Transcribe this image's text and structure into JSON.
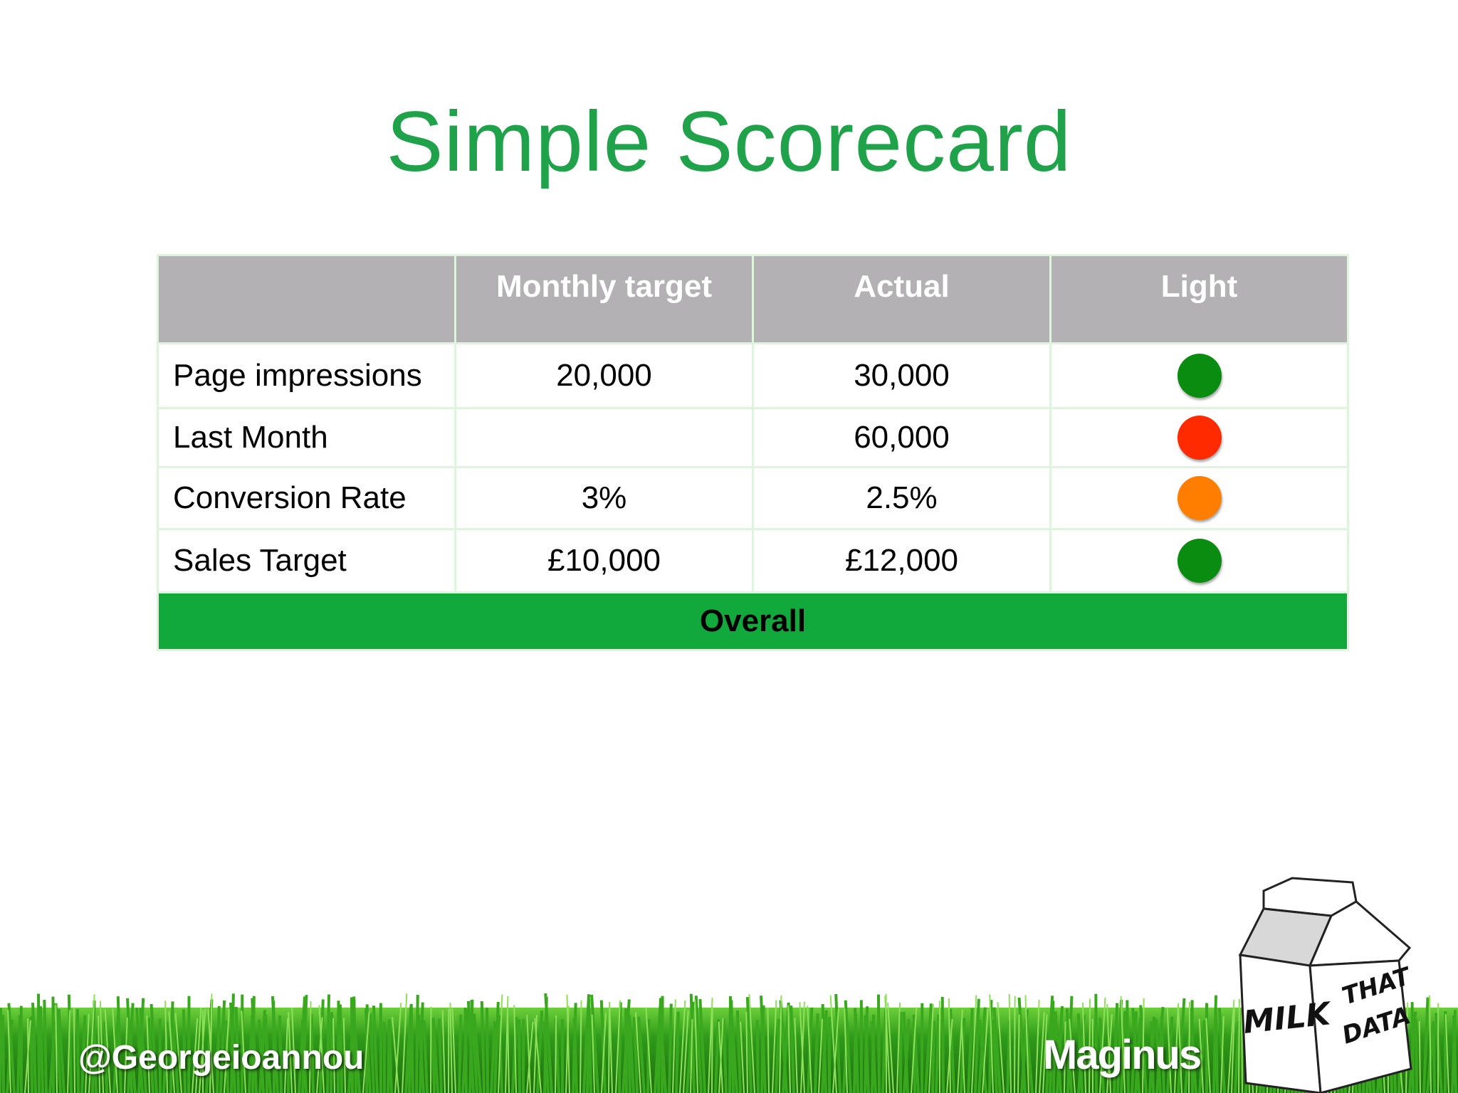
{
  "slide": {
    "title": "Simple Scorecard"
  },
  "table": {
    "headers": [
      "",
      "Monthly target",
      "Actual",
      "Light"
    ],
    "rows": [
      {
        "metric": "Page impressions",
        "target": "20,000",
        "actual": "30,000",
        "light_color": "#0a8c10"
      },
      {
        "metric": "Last Month",
        "target": "",
        "actual": "60,000",
        "light_color": "#ff2a00"
      },
      {
        "metric": "Conversion Rate",
        "target": "3%",
        "actual": "2.5%",
        "light_color": "#ff7e00"
      },
      {
        "metric": "Sales Target",
        "target": "£10,000",
        "actual": "£12,000",
        "light_color": "#0a8c10"
      }
    ],
    "overall_label": "Overall",
    "overall_color": "#11a83c"
  },
  "footer": {
    "twitter_handle": "@Georgeioannou",
    "brand": "Maginus",
    "carton_text_1": "MILK",
    "carton_text_2": "THAT",
    "carton_text_3": "DATA",
    "carton_icon": "milk-carton-icon"
  }
}
